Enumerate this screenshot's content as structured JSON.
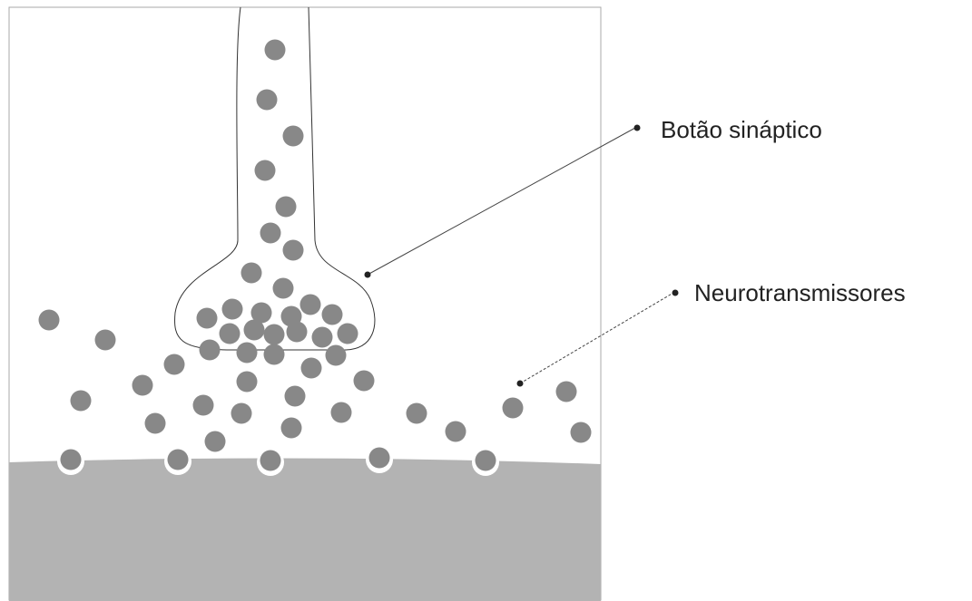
{
  "labels": {
    "synaptic_button": "Botão sináptico",
    "neurotransmitters": "Neurotransmissores"
  }
}
